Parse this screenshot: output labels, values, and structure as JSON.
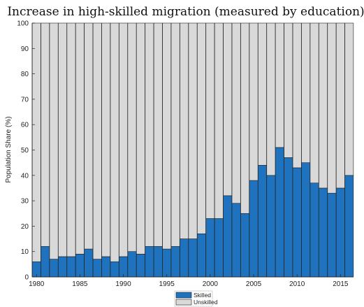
{
  "chart_data": {
    "type": "bar",
    "stacked": true,
    "title": "Increase in high-skilled migration (measured by education)",
    "xlabel": "",
    "ylabel": "Population Share (%)",
    "ylim": [
      0,
      100
    ],
    "y_ticks": [
      0,
      10,
      20,
      30,
      40,
      50,
      60,
      70,
      80,
      90,
      100
    ],
    "x_ticks": [
      1980,
      1985,
      1990,
      1995,
      2000,
      2005,
      2010,
      2015
    ],
    "x": [
      1980,
      1981,
      1982,
      1983,
      1984,
      1985,
      1986,
      1987,
      1988,
      1989,
      1990,
      1991,
      1992,
      1993,
      1994,
      1995,
      1996,
      1997,
      1998,
      1999,
      2000,
      2001,
      2002,
      2003,
      2004,
      2005,
      2006,
      2007,
      2008,
      2009,
      2010,
      2011,
      2012,
      2013,
      2014,
      2015,
      2016
    ],
    "series": [
      {
        "name": "Skilled",
        "color": "#1f72bd",
        "values": [
          6,
          12,
          7,
          8,
          8,
          9,
          11,
          7,
          8,
          6,
          8,
          10,
          9,
          12,
          12,
          11,
          12,
          15,
          15,
          17,
          23,
          23,
          32,
          29,
          25,
          38,
          44,
          40,
          51,
          47,
          43,
          45,
          37,
          35,
          33,
          35,
          40
        ]
      },
      {
        "name": "Unskilled",
        "color": "#d9d9d9",
        "values": [
          94,
          88,
          93,
          92,
          92,
          91,
          89,
          93,
          92,
          94,
          92,
          90,
          91,
          88,
          88,
          89,
          88,
          85,
          85,
          83,
          77,
          77,
          68,
          71,
          75,
          62,
          56,
          60,
          49,
          53,
          57,
          55,
          63,
          65,
          67,
          65,
          60
        ]
      }
    ],
    "grid": false,
    "legend_position": "bottom"
  }
}
